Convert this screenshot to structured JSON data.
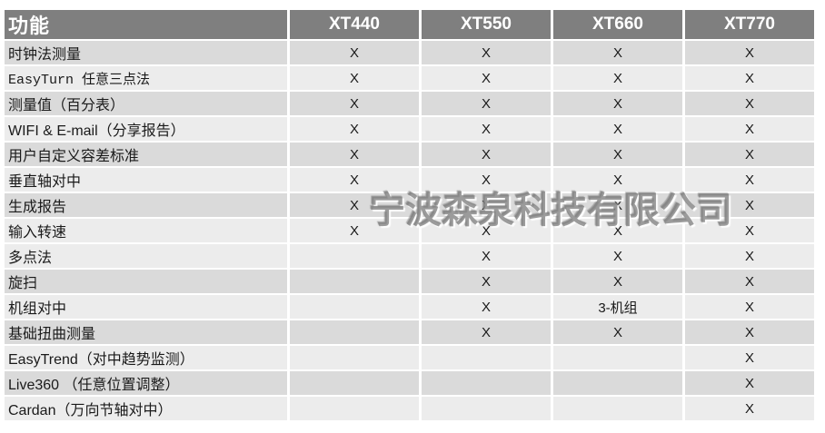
{
  "watermark": {
    "text": "宁波森泉科技有限公司"
  },
  "colors": {
    "header_bg": "#7f7f7f",
    "header_text": "#ffffff",
    "row_dark": "#dadada",
    "row_light": "#ececec",
    "cell_text": "#1a1a1a",
    "watermark_gray": "#808080"
  },
  "table": {
    "header": {
      "feature_label": "功能",
      "columns": [
        "XT440",
        "XT550",
        "XT660",
        "XT770"
      ]
    },
    "rows": [
      {
        "label": "时钟法测量",
        "cells": [
          "X",
          "X",
          "X",
          "X"
        ]
      },
      {
        "label": "EasyTurn 任意三点法",
        "cells": [
          "X",
          "X",
          "X",
          "X"
        ]
      },
      {
        "label": "测量值（百分表）",
        "cells": [
          "X",
          "X",
          "X",
          "X"
        ]
      },
      {
        "label": "WIFI & E-mail（分享报告）",
        "cells": [
          "X",
          "X",
          "X",
          "X"
        ]
      },
      {
        "label": "用户自定义容差标准",
        "cells": [
          "X",
          "X",
          "X",
          "X"
        ]
      },
      {
        "label": "垂直轴对中",
        "cells": [
          "X",
          "X",
          "X",
          "X"
        ]
      },
      {
        "label": "生成报告",
        "cells": [
          "X",
          "X",
          "X",
          "X"
        ]
      },
      {
        "label": "输入转速",
        "cells": [
          "X",
          "X",
          "X",
          "X"
        ]
      },
      {
        "label": "多点法",
        "cells": [
          "",
          "X",
          "X",
          "X"
        ]
      },
      {
        "label": "旋扫",
        "cells": [
          "",
          "X",
          "X",
          "X"
        ]
      },
      {
        "label": "机组对中",
        "cells": [
          "",
          "X",
          "3-机组",
          "X"
        ]
      },
      {
        "label": "基础扭曲测量",
        "cells": [
          "",
          "X",
          "X",
          "X"
        ]
      },
      {
        "label": "EasyTrend（对中趋势监测）",
        "cells": [
          "",
          "",
          "",
          "X"
        ]
      },
      {
        "label": "Live360 （任意位置调整）",
        "cells": [
          "",
          "",
          "",
          "X"
        ]
      },
      {
        "label": "Cardan（万向节轴对中）",
        "cells": [
          "",
          "",
          "",
          "X"
        ]
      }
    ]
  }
}
